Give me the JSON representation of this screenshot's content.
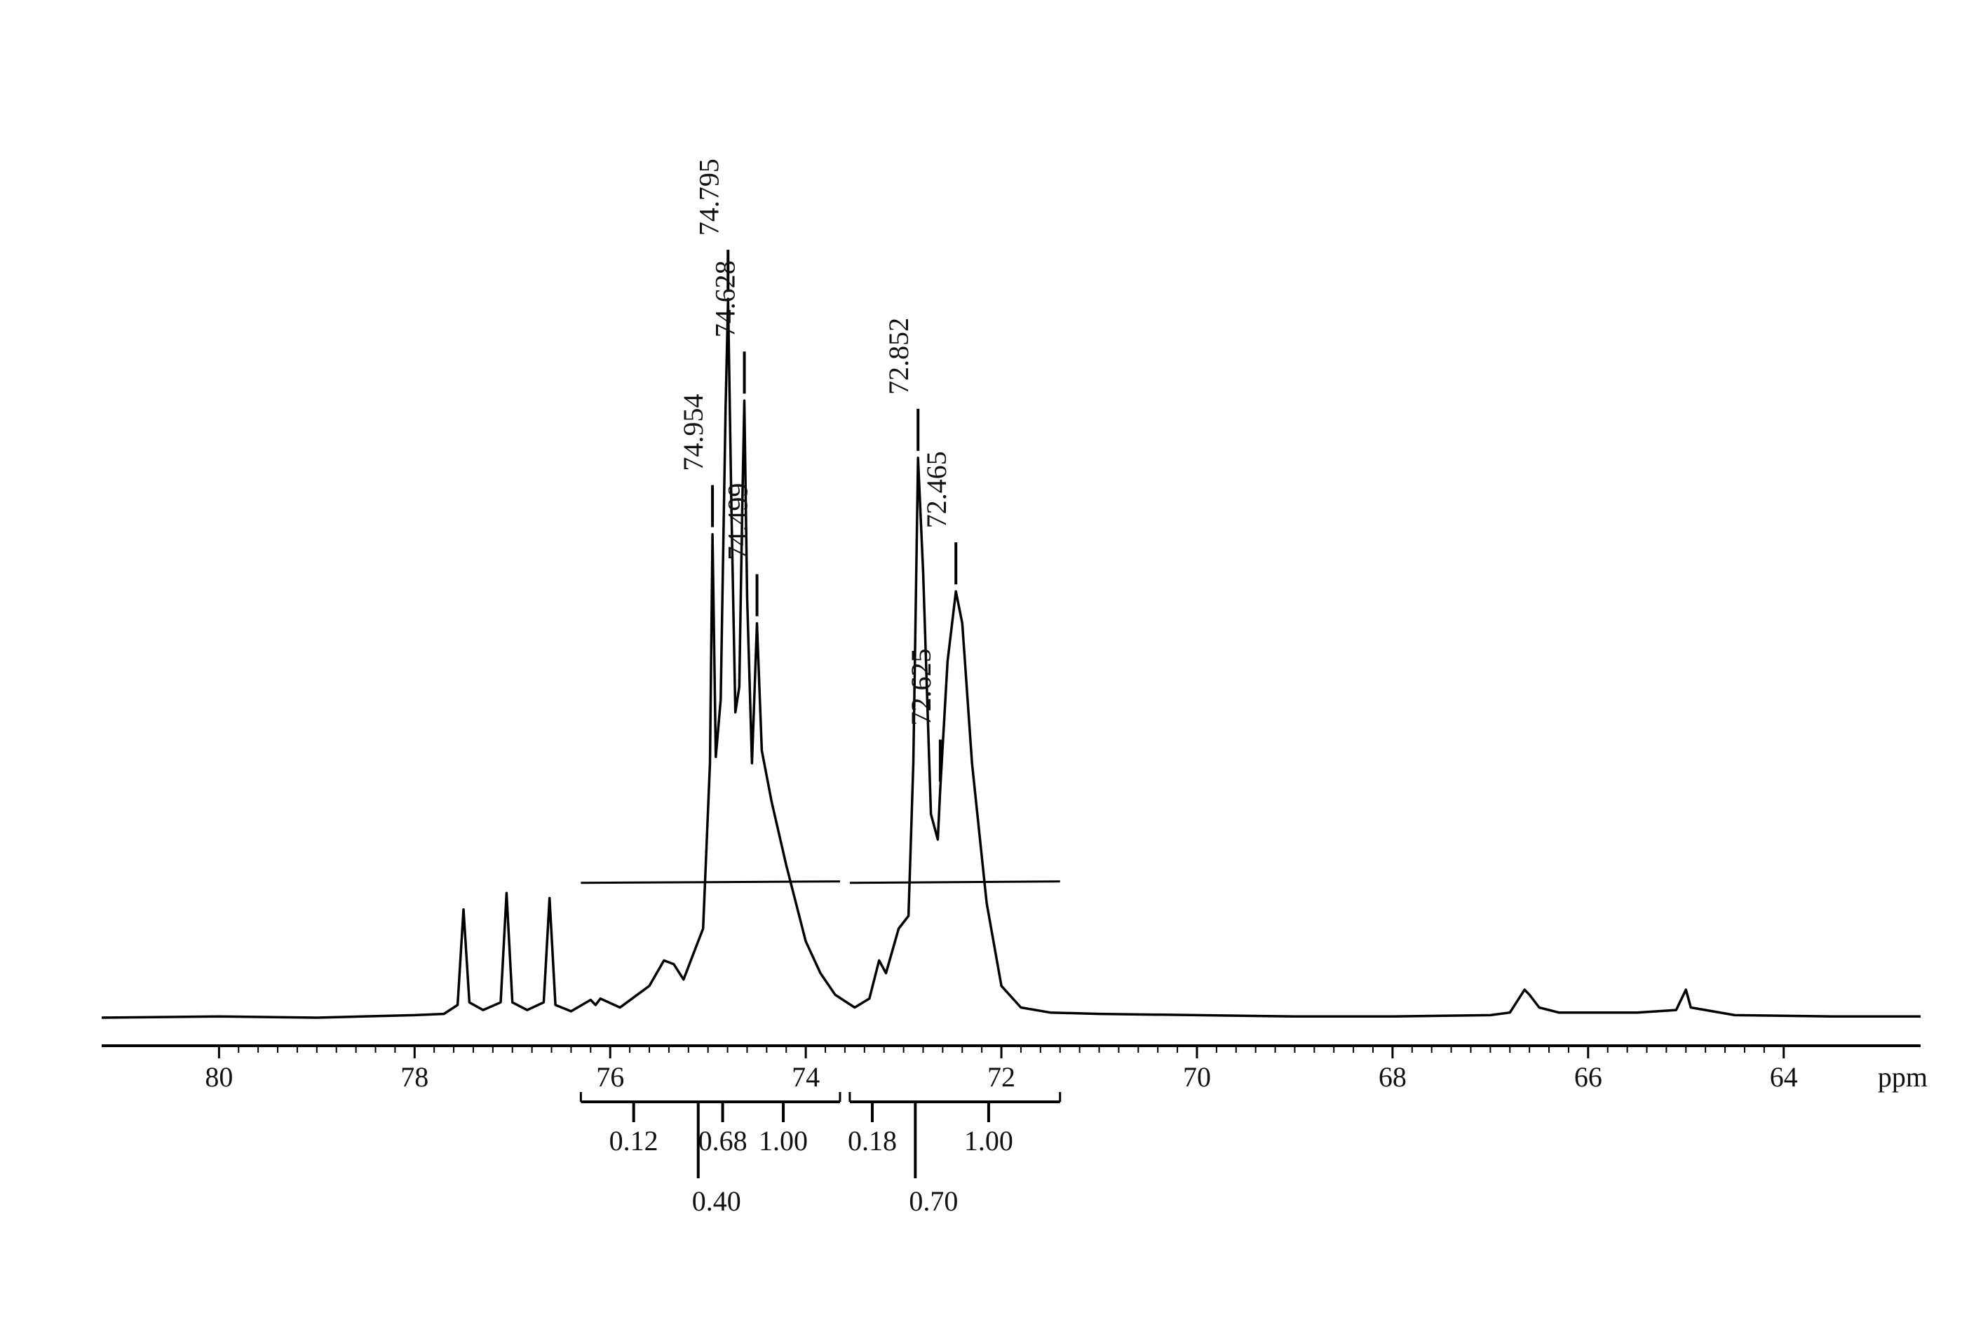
{
  "chart_data": {
    "type": "line",
    "x_label": "ppm",
    "xlim": [
      81.2,
      62.6
    ],
    "xticks": [
      80,
      78,
      76,
      74,
      72,
      70,
      68,
      66,
      64
    ],
    "series": [
      {
        "color": "#000000",
        "x": [
          81.2,
          80,
          79,
          78,
          77.7,
          77.56,
          77.5,
          77.44,
          77.3,
          77.12,
          77.06,
          77.0,
          76.85,
          76.68,
          76.62,
          76.56,
          76.4,
          76.2,
          76.15,
          76.1,
          75.9,
          75.6,
          75.45,
          75.35,
          75.25,
          75.15,
          75.05,
          74.98,
          74.954,
          74.92,
          74.87,
          74.82,
          74.795,
          74.76,
          74.72,
          74.68,
          74.65,
          74.628,
          74.6,
          74.55,
          74.499,
          74.45,
          74.35,
          74.2,
          74.0,
          73.85,
          73.7,
          73.5,
          73.35,
          73.25,
          73.18,
          73.05,
          72.95,
          72.9,
          72.852,
          72.8,
          72.72,
          72.65,
          72.625,
          72.55,
          72.465,
          72.4,
          72.3,
          72.15,
          72.0,
          71.8,
          71.5,
          71,
          70,
          69,
          68,
          67,
          66.8,
          66.65,
          66.6,
          66.5,
          66.3,
          66,
          65.5,
          65.1,
          65.0,
          64.95,
          64.5,
          63.5,
          62.6
        ],
        "values": [
          0,
          1,
          0,
          2,
          3,
          10,
          85,
          12,
          6,
          12,
          98,
          12,
          6,
          12,
          94,
          10,
          5,
          14,
          10,
          15,
          8,
          25,
          45,
          42,
          30,
          50,
          70,
          200,
          380,
          205,
          250,
          480,
          565,
          400,
          240,
          260,
          400,
          485,
          330,
          200,
          310,
          210,
          170,
          120,
          60,
          35,
          18,
          8,
          15,
          45,
          35,
          70,
          80,
          200,
          440,
          350,
          160,
          140,
          180,
          280,
          335,
          310,
          200,
          90,
          25,
          8,
          4,
          3,
          2,
          1,
          1,
          2,
          4,
          22,
          18,
          8,
          4,
          4,
          4,
          6,
          22,
          8,
          2,
          1,
          1
        ]
      }
    ],
    "peaks": [
      74.954,
      74.795,
      74.628,
      74.499,
      72.852,
      72.625,
      72.465
    ],
    "peak_labels": [
      "74.954",
      "74.795",
      "74.628",
      "74.499",
      "72.852",
      "72.625",
      "72.465"
    ],
    "integral_regions": [
      [
        76.3,
        73.65
      ],
      [
        73.55,
        71.4
      ]
    ],
    "integrals": [
      {
        "x": 75.76,
        "value": 0.12
      },
      {
        "x": 75.1,
        "value": 0.4,
        "label": "0.40"
      },
      {
        "x": 74.85,
        "value": 0.68
      },
      {
        "x": 74.23,
        "value": 1,
        "label": "1.00"
      },
      {
        "x": 73.32,
        "value": 0.18
      },
      {
        "x": 72.88,
        "value": 0.7,
        "label": "0.70"
      },
      {
        "x": 72.13,
        "value": 1,
        "label": "1.00"
      }
    ]
  }
}
